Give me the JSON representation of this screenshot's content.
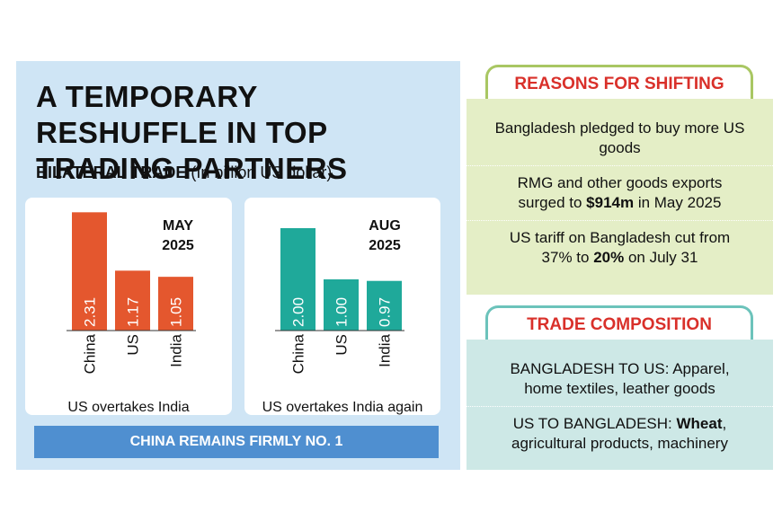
{
  "header": {
    "title": "A TEMPORARY RESHUFFLE IN TOP TRADING PARTNERS",
    "subtitle": "BILATERAL TRADE",
    "unit_note": "(In billion US dollar)"
  },
  "chart_data": [
    {
      "type": "bar",
      "title_lines": [
        "MAY",
        "2025"
      ],
      "categories": [
        "China",
        "US",
        "India"
      ],
      "values": [
        2.31,
        1.17,
        1.05
      ],
      "color": "#e4572e",
      "caption": "US overtakes India"
    },
    {
      "type": "bar",
      "title_lines": [
        "AUG",
        "2025"
      ],
      "categories": [
        "China",
        "US",
        "India"
      ],
      "values": [
        2.0,
        1.0,
        0.97
      ],
      "value_labels": [
        "2.00",
        "1.00",
        "0.97"
      ],
      "color": "#1fa99a",
      "caption": "US overtakes India again"
    }
  ],
  "banner": "CHINA REMAINS FIRMLY NO. 1",
  "reasons": {
    "title": "REASONS FOR SHIFTING",
    "items": [
      {
        "pre": "Bangladesh pledged to buy more US goods"
      },
      {
        "pre": "RMG and other goods exports surged to ",
        "bold": "$914m",
        "post": " in May 2025"
      },
      {
        "pre": "US tariff on Bangladesh cut from 37% to ",
        "bold": "20%",
        "post": " on July 31"
      }
    ]
  },
  "composition": {
    "title": "TRADE COMPOSITION",
    "items": [
      {
        "pre": "BANGLADESH TO US: Apparel, home textiles, leather goods"
      },
      {
        "pre": "US TO BANGLADESH: ",
        "bold": "Wheat",
        "post": ", agricultural products, machinery"
      }
    ]
  }
}
